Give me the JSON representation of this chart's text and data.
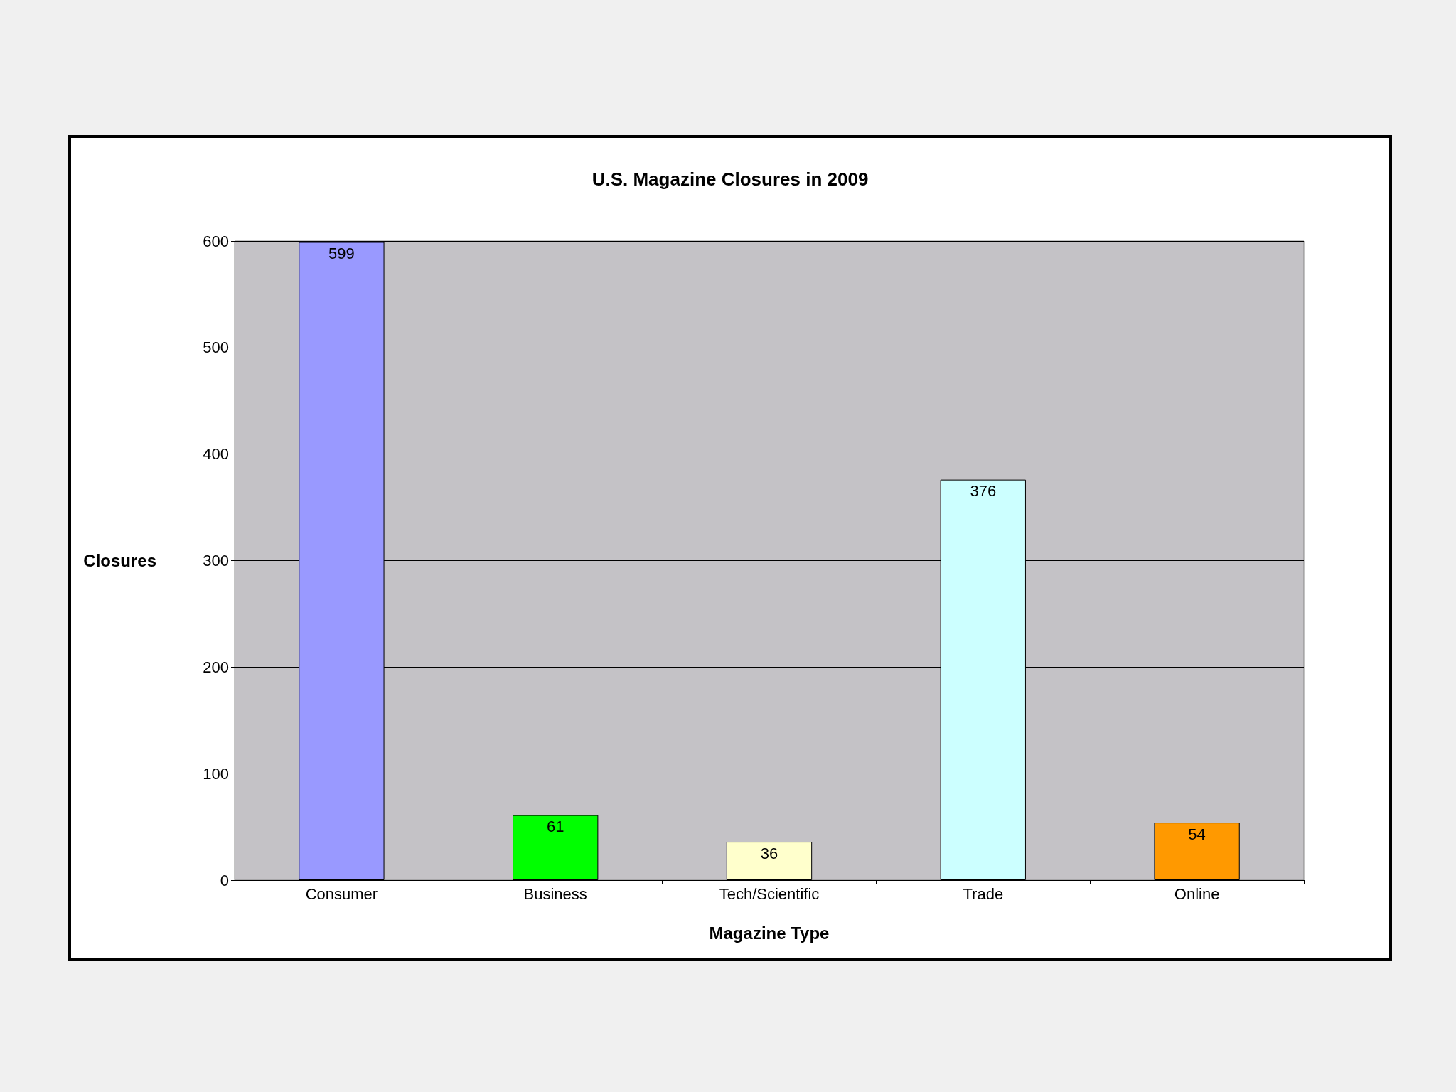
{
  "chart_data": {
    "type": "bar",
    "title": "U.S. Magazine Closures in 2009",
    "xlabel": "Magazine Type",
    "ylabel": "Closures",
    "categories": [
      "Consumer",
      "Business",
      "Tech/Scientific",
      "Trade",
      "Online"
    ],
    "values": [
      599,
      61,
      36,
      376,
      54
    ],
    "colors": [
      "#9999ff",
      "#00ff00",
      "#ffffcc",
      "#ccffff",
      "#ff9900"
    ],
    "ylim": [
      0,
      600
    ],
    "yticks": [
      0,
      100,
      200,
      300,
      400,
      500,
      600
    ],
    "grid": "y",
    "data_labels": true
  }
}
